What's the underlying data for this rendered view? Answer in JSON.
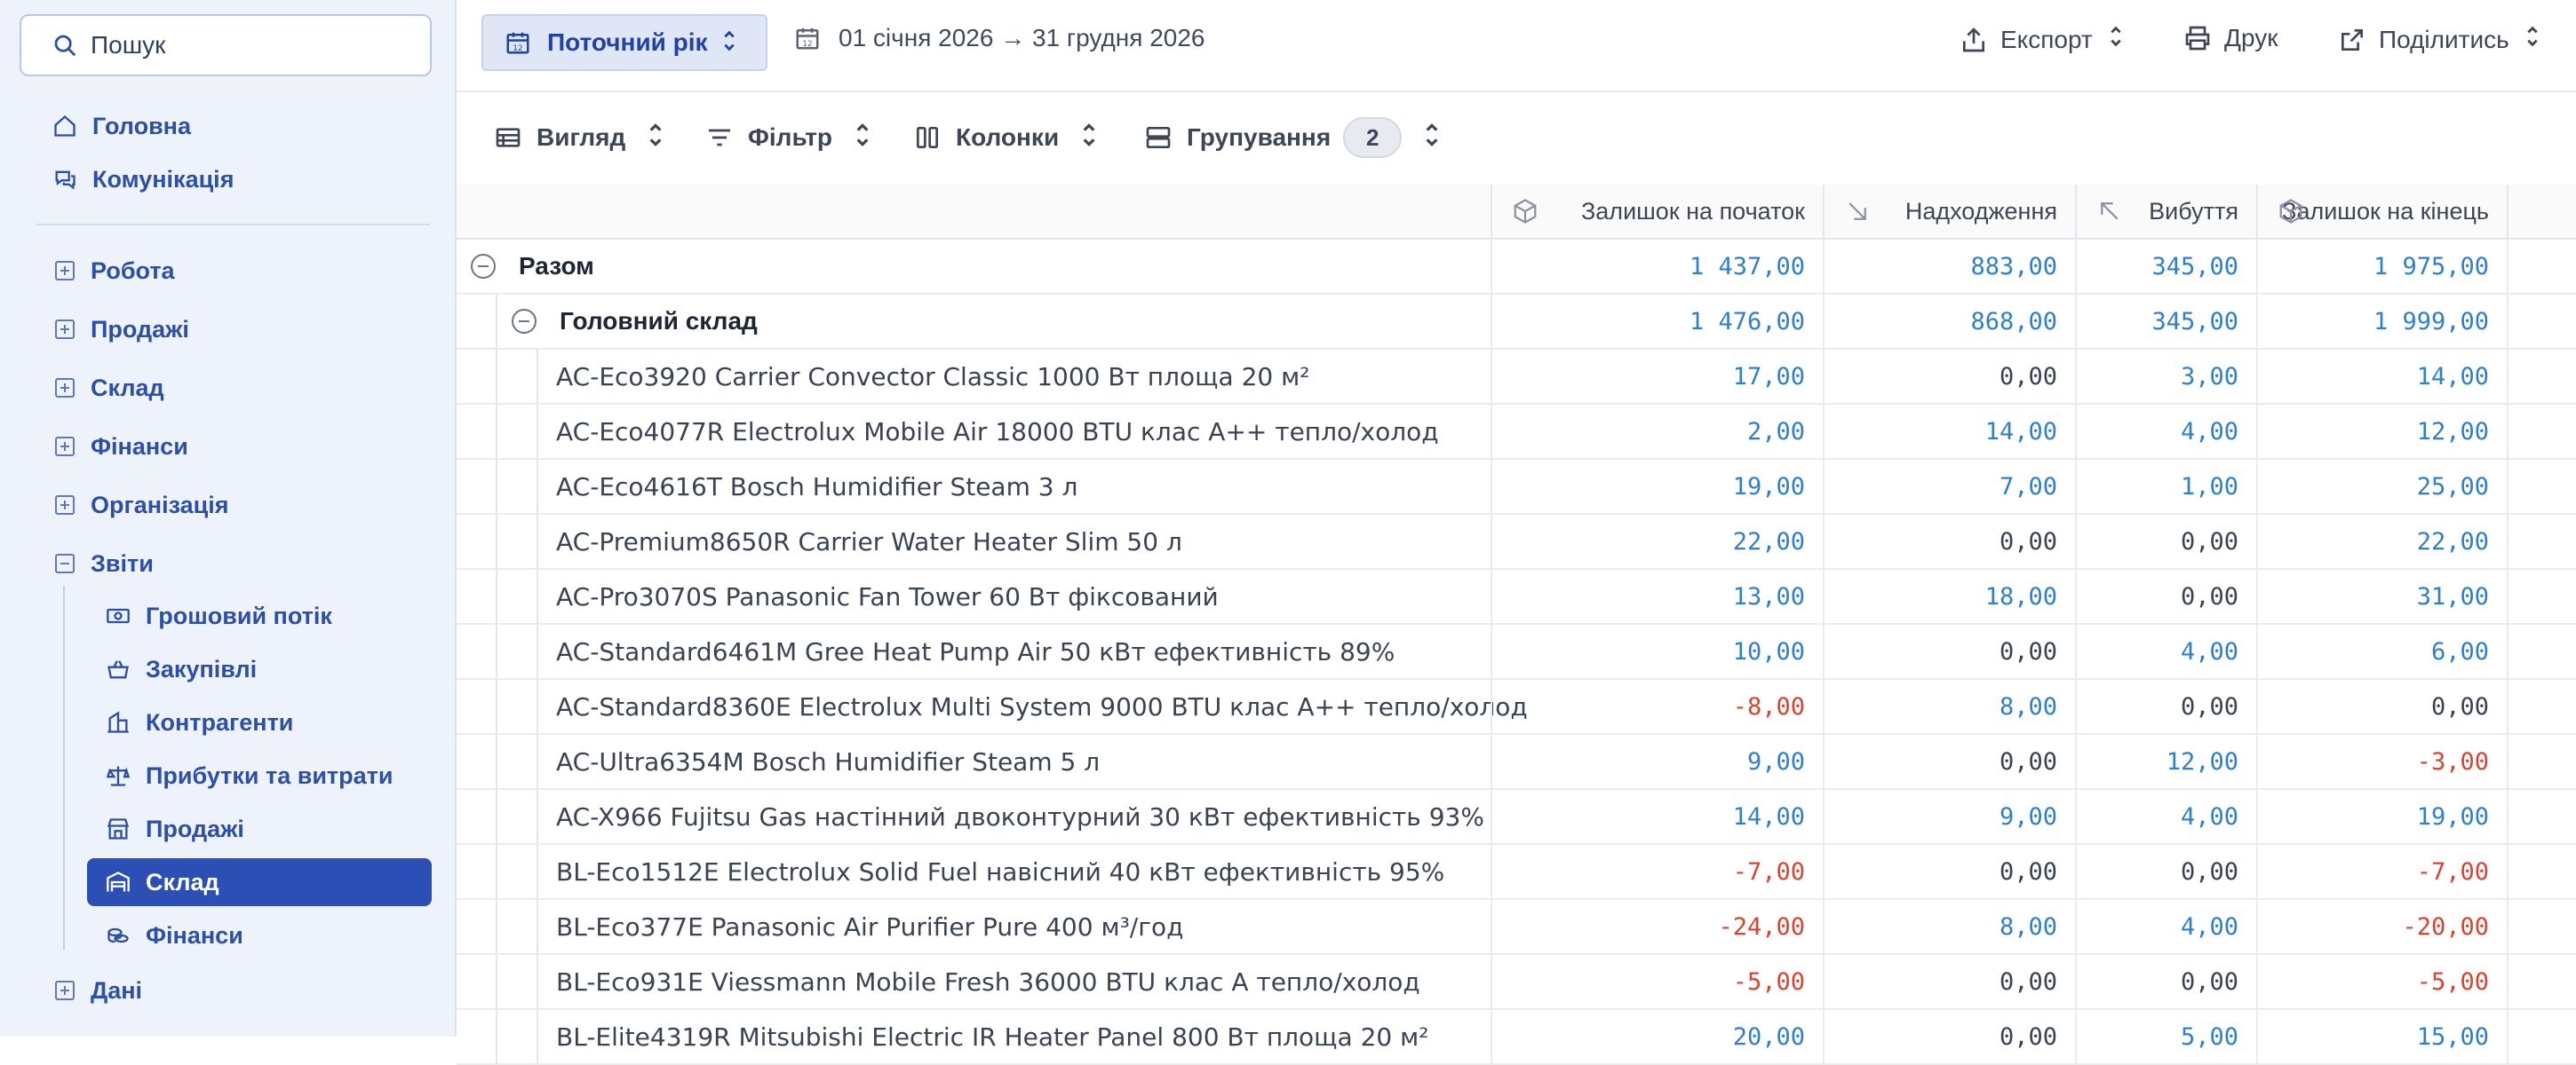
{
  "sidebar": {
    "search_label": "Пошук",
    "top_items": [
      {
        "label": "Головна",
        "icon": "home-icon"
      },
      {
        "label": "Комунікація",
        "icon": "chat-icon"
      }
    ],
    "sections": [
      {
        "label": "Робота",
        "expanded": false
      },
      {
        "label": "Продажі",
        "expanded": false
      },
      {
        "label": "Склад",
        "expanded": false
      },
      {
        "label": "Фінанси",
        "expanded": false
      },
      {
        "label": "Організація",
        "expanded": false
      },
      {
        "label": "Звіти",
        "expanded": true
      },
      {
        "label": "Дані",
        "expanded": false
      }
    ],
    "report_items": [
      {
        "label": "Грошовий потік",
        "icon": "banknote-icon"
      },
      {
        "label": "Закупівлі",
        "icon": "basket-icon"
      },
      {
        "label": "Контрагенти",
        "icon": "building-icon"
      },
      {
        "label": "Прибутки та витрати",
        "icon": "scales-icon"
      },
      {
        "label": "Продажі",
        "icon": "store-icon"
      },
      {
        "label": "Склад",
        "icon": "warehouse-icon",
        "active": true
      },
      {
        "label": "Фінанси",
        "icon": "coins-icon"
      }
    ]
  },
  "topbar": {
    "period_label": "Поточний рік",
    "date_range": "01 січня 2026 → 31 грудня 2026",
    "export_label": "Експорт",
    "print_label": "Друк",
    "share_label": "Поділитись"
  },
  "toolbar": {
    "view_label": "Вигляд",
    "filter_label": "Фільтр",
    "columns_label": "Колонки",
    "grouping_label": "Групування",
    "grouping_count": "2"
  },
  "table": {
    "columns": [
      "Залишок на початок",
      "Надходження",
      "Вибуття",
      "Залишок на кінець"
    ],
    "total": {
      "label": "Разом",
      "values": [
        "1 437,00",
        "883,00",
        "345,00",
        "1 975,00"
      ]
    },
    "group": {
      "label": "Головний склад",
      "values": [
        "1 476,00",
        "868,00",
        "345,00",
        "1 999,00"
      ]
    },
    "rows": [
      {
        "name": "AC-Eco3920 Carrier Convector Classic 1000 Вт площа 20 м²",
        "values": [
          "17,00",
          "0,00",
          "3,00",
          "14,00"
        ]
      },
      {
        "name": "AC-Eco4077R Electrolux Mobile Air 18000 BTU клас A++ тепло/холод",
        "values": [
          "2,00",
          "14,00",
          "4,00",
          "12,00"
        ]
      },
      {
        "name": "AC-Eco4616T Bosch Humidifier Steam 3 л",
        "values": [
          "19,00",
          "7,00",
          "1,00",
          "25,00"
        ]
      },
      {
        "name": "AC-Premium8650R Carrier Water Heater Slim 50 л",
        "values": [
          "22,00",
          "0,00",
          "0,00",
          "22,00"
        ]
      },
      {
        "name": "AC-Pro3070S Panasonic Fan Tower 60 Вт фіксований",
        "values": [
          "13,00",
          "18,00",
          "0,00",
          "31,00"
        ]
      },
      {
        "name": "AC-Standard6461M Gree Heat Pump Air 50 кВт ефективність 89%",
        "values": [
          "10,00",
          "0,00",
          "4,00",
          "6,00"
        ]
      },
      {
        "name": "AC-Standard8360E Electrolux Multi System 9000 BTU клас A++ тепло/холод",
        "values": [
          "-8,00",
          "8,00",
          "0,00",
          "0,00"
        ]
      },
      {
        "name": "AC-Ultra6354M Bosch Humidifier Steam 5 л",
        "values": [
          "9,00",
          "0,00",
          "12,00",
          "-3,00"
        ]
      },
      {
        "name": "AC-X966 Fujitsu Gas настінний двоконтурний 30 кВт ефективність 93%",
        "values": [
          "14,00",
          "9,00",
          "4,00",
          "19,00"
        ]
      },
      {
        "name": "BL-Eco1512E Electrolux Solid Fuel навісний 40 кВт ефективність 95%",
        "values": [
          "-7,00",
          "0,00",
          "0,00",
          "-7,00"
        ]
      },
      {
        "name": "BL-Eco377E Panasonic Air Purifier Pure 400 м³/год",
        "values": [
          "-24,00",
          "8,00",
          "4,00",
          "-20,00"
        ]
      },
      {
        "name": "BL-Eco931E Viessmann Mobile Fresh 36000 BTU клас A тепло/холод",
        "values": [
          "-5,00",
          "0,00",
          "0,00",
          "-5,00"
        ]
      },
      {
        "name": "BL-Elite4319R Mitsubishi Electric IR Heater Panel 800 Вт площа 20 м²",
        "values": [
          "20,00",
          "0,00",
          "5,00",
          "15,00"
        ]
      }
    ]
  }
}
